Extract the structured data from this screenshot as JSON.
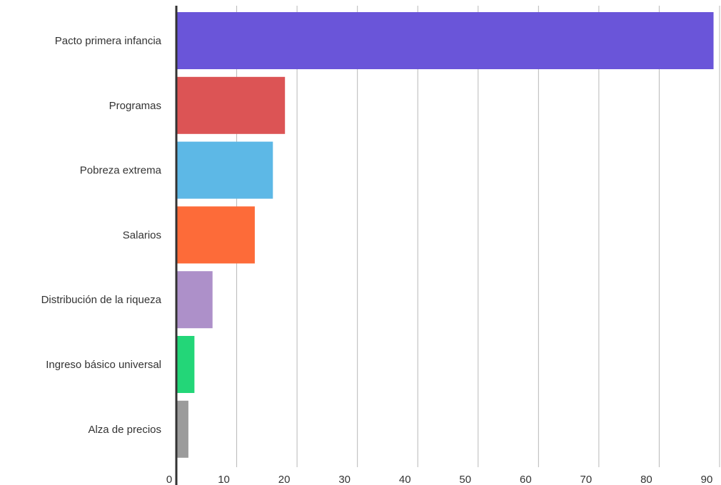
{
  "chart_data": {
    "type": "bar",
    "orientation": "horizontal",
    "categories": [
      "Pacto primera infancia",
      "Programas",
      "Pobreza extrema",
      "Salarios",
      "Distribución de la riqueza",
      "Ingreso básico universal",
      "Alza de precios"
    ],
    "values": [
      89,
      18,
      16,
      13,
      6,
      3,
      2
    ],
    "colors": [
      "#6a55d9",
      "#dc5455",
      "#5db8e6",
      "#fd6b39",
      "#ad90c9",
      "#23d678",
      "#9b9b9b"
    ],
    "xlim": [
      0,
      90
    ],
    "xticks": [
      "0",
      "10",
      "20",
      "30",
      "40",
      "50",
      "60",
      "70",
      "80",
      "90"
    ],
    "grid": true,
    "legend": "none"
  }
}
